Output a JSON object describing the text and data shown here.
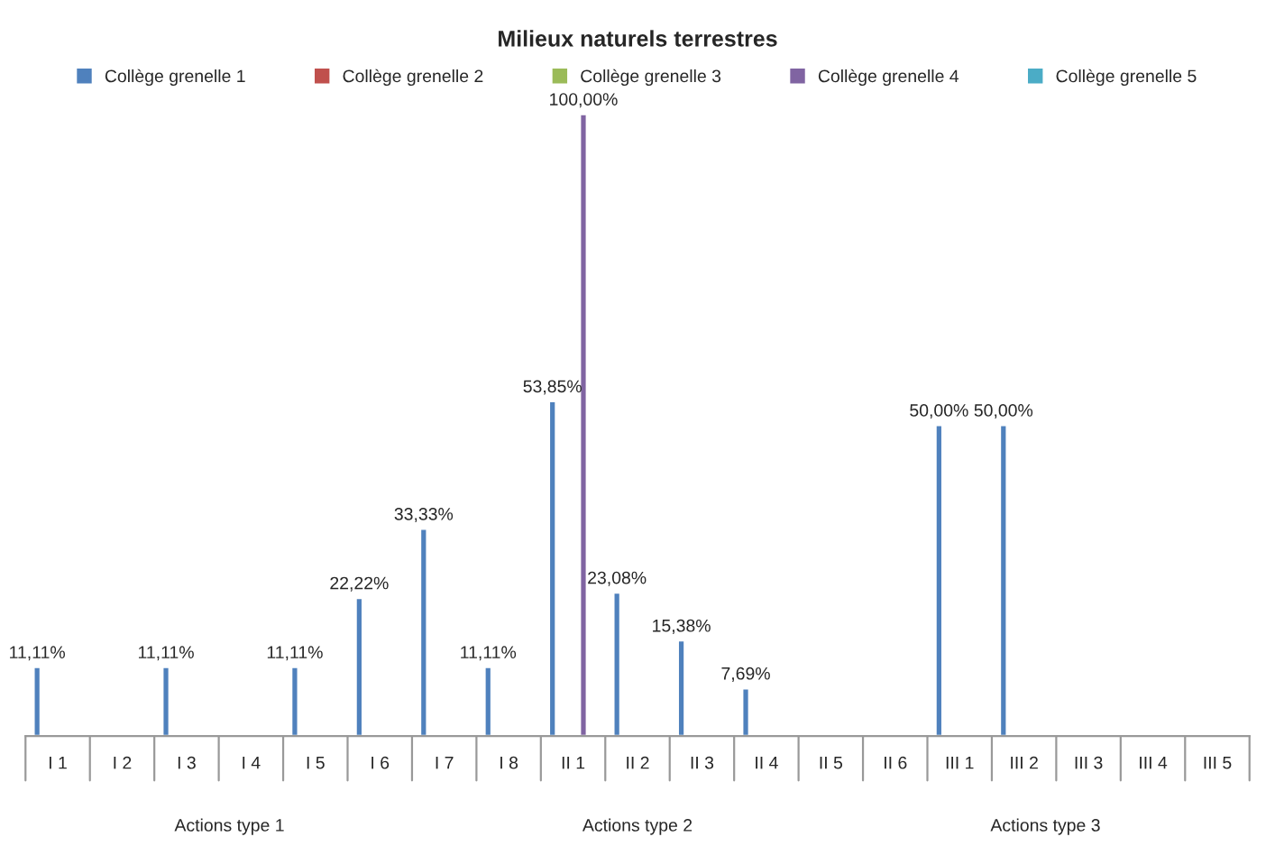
{
  "chart_data": {
    "type": "bar",
    "title": "Milieux naturels terrestres",
    "categories": [
      "I 1",
      "I 2",
      "I 3",
      "I 4",
      "I 5",
      "I 6",
      "I 7",
      "I 8",
      "II 1",
      "II 2",
      "II 3",
      "II 4",
      "II 5",
      "II 6",
      "III 1",
      "III 2",
      "III 3",
      "III 4",
      "III 5"
    ],
    "series": [
      {
        "name": "Collège grenelle 1",
        "color": "#4f81bd",
        "values": [
          11.11,
          null,
          11.11,
          null,
          11.11,
          22.22,
          33.33,
          11.11,
          53.85,
          23.08,
          15.38,
          7.69,
          null,
          null,
          50,
          50,
          null,
          null,
          null
        ],
        "value_labels": [
          "11,11%",
          null,
          "11,11%",
          null,
          "11,11%",
          "22,22%",
          "33,33%",
          "11,11%",
          "53,85%",
          "23,08%",
          "15,38%",
          "7,69%",
          null,
          null,
          "50,00%",
          "50,00%",
          null,
          null,
          null
        ]
      },
      {
        "name": "Collège grenelle 2",
        "color": "#c0504d",
        "values": [
          null,
          null,
          null,
          null,
          null,
          null,
          null,
          null,
          null,
          null,
          null,
          null,
          null,
          null,
          null,
          null,
          null,
          null,
          null
        ]
      },
      {
        "name": "Collège grenelle 3",
        "color": "#9bbb59",
        "values": [
          null,
          null,
          null,
          null,
          null,
          null,
          null,
          null,
          null,
          null,
          null,
          null,
          null,
          null,
          null,
          null,
          null,
          null,
          null
        ]
      },
      {
        "name": "Collège grenelle 4",
        "color": "#8064a2",
        "values": [
          null,
          null,
          null,
          null,
          null,
          null,
          null,
          null,
          100,
          null,
          null,
          null,
          null,
          null,
          null,
          null,
          null,
          null,
          null
        ],
        "value_labels": [
          null,
          null,
          null,
          null,
          null,
          null,
          null,
          null,
          "100,00%",
          null,
          null,
          null,
          null,
          null,
          null,
          null,
          null,
          null,
          null
        ]
      },
      {
        "name": "Collège grenelle 5",
        "color": "#4bacc6",
        "values": [
          null,
          null,
          null,
          null,
          null,
          null,
          null,
          null,
          null,
          null,
          null,
          null,
          null,
          null,
          null,
          null,
          null,
          null,
          null
        ]
      }
    ],
    "annotations": [
      "Actions type 1",
      "Actions type 2",
      "Actions type 3"
    ],
    "tick_labels": "x",
    "grid": false,
    "legend": "top"
  }
}
